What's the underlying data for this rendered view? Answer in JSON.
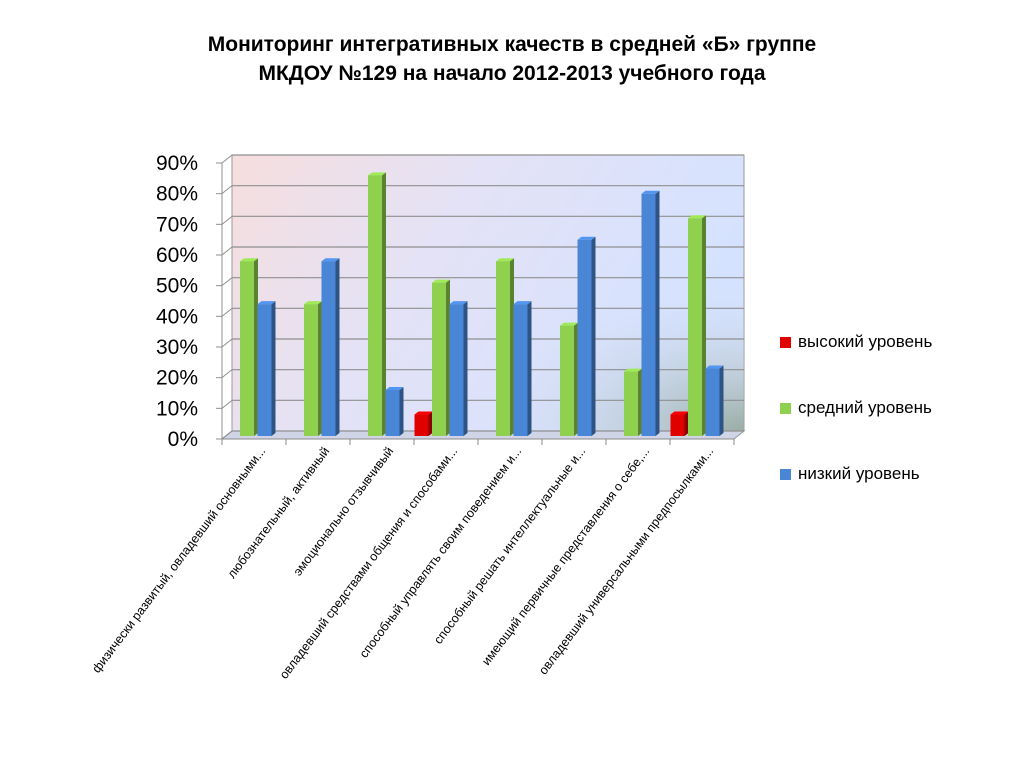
{
  "title": {
    "line1": "Мониторинг интегративных качеств в средней «Б» группе",
    "line2": "МКДОУ №129 на начало 2012-2013 учебного года"
  },
  "chart_data": {
    "type": "bar",
    "title": "Мониторинг интегративных качеств в средней «Б» группе МКДОУ №129 на начало 2012-2013 учебного года",
    "categories": [
      "физически развитый, овладевший основными...",
      "любознательный, активный",
      "эмоционально отзывчивый",
      "овладевший средствами общения и способами...",
      "способный управлять своим поведением и...",
      "способный решать интеллектуальные и...",
      "имеющий первичные представления о себе,...",
      "овладевший универсальными предпосылками..."
    ],
    "series": [
      {
        "name": "высокий уровень",
        "color": "#E00000",
        "values": [
          0,
          0,
          0,
          7,
          0,
          0,
          0,
          7
        ]
      },
      {
        "name": "средний уровень",
        "color": "#8FD14F",
        "values": [
          57,
          43,
          85,
          50,
          57,
          36,
          21,
          71
        ]
      },
      {
        "name": "низкий уровень",
        "color": "#4A86D6",
        "values": [
          43,
          57,
          15,
          43,
          43,
          64,
          79,
          22
        ]
      }
    ],
    "yticks": [
      "0%",
      "10%",
      "20%",
      "30%",
      "40%",
      "50%",
      "60%",
      "70%",
      "80%",
      "90%"
    ],
    "ylim": [
      0,
      90
    ],
    "grid": true,
    "legend_position": "right"
  }
}
